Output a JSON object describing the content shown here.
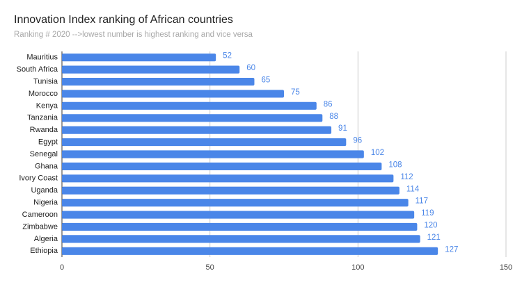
{
  "chart_data": {
    "type": "bar",
    "horizontal": true,
    "title": "Innovation Index ranking of African countries",
    "subtitle": "Ranking # 2020 -->lowest number is highest ranking and vice versa",
    "categories": [
      "Mauritius",
      "South Africa",
      "Tunisia",
      "Morocco",
      "Kenya",
      "Tanzania",
      "Rwanda",
      "Egypt",
      "Senegal",
      "Ghana",
      "Ivory Coast",
      "Uganda",
      "Nigeria",
      "Cameroon",
      "Zimbabwe",
      "Algeria",
      "Ethiopia"
    ],
    "values": [
      52,
      60,
      65,
      75,
      86,
      88,
      91,
      96,
      102,
      108,
      112,
      114,
      117,
      119,
      120,
      121,
      127
    ],
    "color": "#4a86e8",
    "xlim": [
      0,
      150
    ],
    "xticks": [
      0,
      50,
      100,
      150
    ],
    "grid": true
  }
}
